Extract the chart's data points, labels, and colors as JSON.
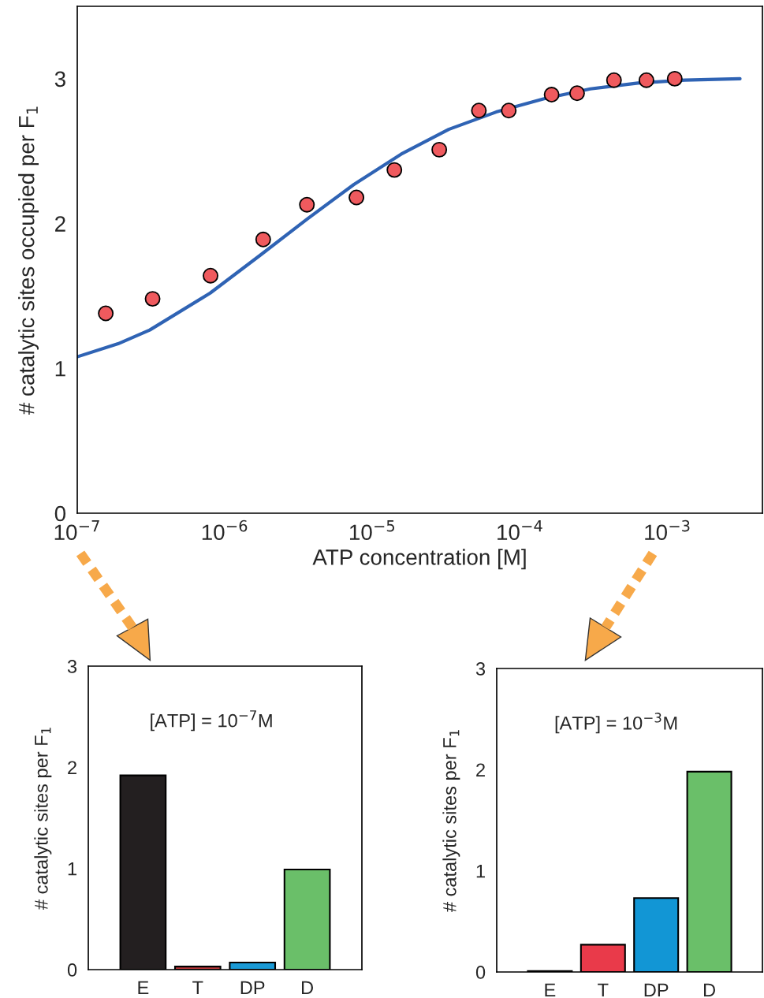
{
  "chart_data": [
    {
      "type": "scatter",
      "xlabel": "ATP concentration [M]",
      "ylabel": "# catalytic sites occupied per F$_{1}$",
      "log": "x",
      "xlim": [
        1e-07,
        0.0044
      ],
      "ylim": [
        0,
        3.5
      ],
      "xticks": [
        {
          "value": 1e-07,
          "label": "10$^{−7}$"
        },
        {
          "value": 1e-06,
          "label": "10$^{−6}$"
        },
        {
          "value": 1e-05,
          "label": "10$^{−5}$"
        },
        {
          "value": 0.0001,
          "label": "10$^{−4}$"
        },
        {
          "value": 0.001,
          "label": "10$^{−3}$"
        }
      ],
      "yticks": [
        0,
        1,
        2,
        3
      ],
      "grid": false,
      "series": [
        {
          "type": "line",
          "color": "#2f63b4",
          "x": [
            1e-07,
            1.89e-07,
            3.1e-07,
            7.96e-07,
            1.73e-06,
            3.6e-06,
            7.5e-06,
            1.57e-05,
            3.29e-05,
            6.9e-05,
            0.000144,
            0.0003,
            0.00063,
            0.00131,
            0.0031
          ],
          "values": [
            1.08,
            1.17,
            1.265,
            1.52,
            1.78,
            2.03,
            2.27,
            2.48,
            2.65,
            2.77,
            2.86,
            2.93,
            2.97,
            2.99,
            3.0
          ]
        },
        {
          "type": "scatter",
          "color": "#ef5a5e",
          "marker": "circle",
          "x": [
            1.56e-07,
            3.24e-07,
            8e-07,
            1.82e-06,
            3.6e-06,
            7.8e-06,
            1.41e-05,
            2.84e-05,
            5.27e-05,
            8.4e-05,
            0.000164,
            0.000244,
            0.000434,
            0.00072,
            0.00112
          ],
          "values": [
            1.38,
            1.48,
            1.64,
            1.89,
            2.13,
            2.18,
            2.37,
            2.51,
            2.78,
            2.78,
            2.89,
            2.9,
            2.99,
            2.99,
            3.0
          ]
        }
      ]
    },
    {
      "type": "bar",
      "ylabel": "# catalytic sites per F$_{1}$",
      "categories": [
        "E",
        "T",
        "DP",
        "D"
      ],
      "values": [
        1.92,
        0.03,
        0.07,
        0.99
      ],
      "colors": [
        "#231f20",
        "#c0393b",
        "#1a9ad6",
        "#6abf69"
      ],
      "ylim": [
        0,
        3
      ],
      "yticks": [
        0,
        1,
        2,
        3
      ],
      "grid": false,
      "annotations": [
        "[ATP] = 10$^{−7}$M"
      ]
    },
    {
      "type": "bar",
      "ylabel": "# catalytic sites per F$_{1}$",
      "categories": [
        "E",
        "T",
        "DP",
        "D"
      ],
      "values": [
        0.01,
        0.27,
        0.73,
        1.98
      ],
      "colors": [
        "#231f20",
        "#e93a4a",
        "#1296d5",
        "#6abf69"
      ],
      "ylim": [
        0,
        3
      ],
      "yticks": [
        0,
        1,
        2,
        3
      ],
      "grid": false,
      "annotations": [
        "[ATP] = 10$^{−3}$M"
      ]
    }
  ]
}
